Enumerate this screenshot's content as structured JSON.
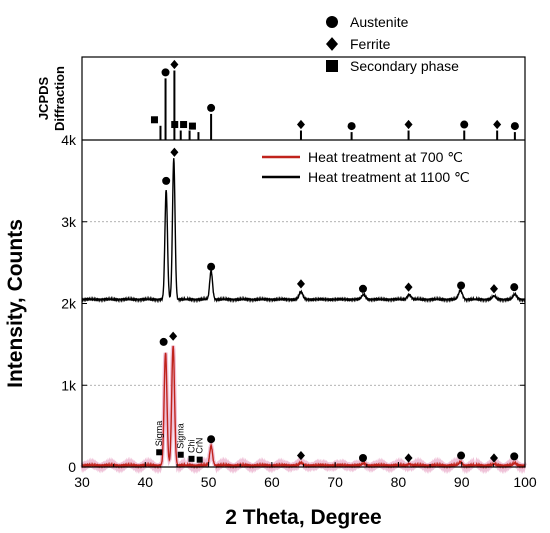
{
  "chart_data": {
    "type": "line",
    "xlabel": "2 Theta, Degree",
    "ylabel": "Intensity, Counts",
    "xlim": [
      30,
      100
    ],
    "ylim": [
      0,
      4000
    ],
    "x_ticks": [
      "30",
      "40",
      "50",
      "60",
      "70",
      "80",
      "90",
      "100"
    ],
    "y_ticks": [
      "0",
      "1k",
      "2k",
      "3k",
      "4k"
    ],
    "grid": "dotted horizontal at 1k and 3k",
    "upper_panel": {
      "label_line1": "JCPDS",
      "label_line2": "Diffraction",
      "legend": [
        {
          "name": "Austenite",
          "marker": "circle"
        },
        {
          "name": "Ferrite",
          "marker": "diamond"
        },
        {
          "name": "Secondary phase",
          "marker": "square"
        }
      ],
      "reference_lines": [
        {
          "x": 42.4,
          "height": 0.18,
          "phase": "Secondary phase"
        },
        {
          "x": 43.2,
          "height": 0.78,
          "phase": "Austenite"
        },
        {
          "x": 44.6,
          "height": 0.88,
          "phase": "Ferrite"
        },
        {
          "x": 45.6,
          "height": 0.12,
          "phase": "Secondary phase"
        },
        {
          "x": 47.0,
          "height": 0.12,
          "phase": "Secondary phase"
        },
        {
          "x": 48.4,
          "height": 0.1,
          "phase": "Secondary phase"
        },
        {
          "x": 50.4,
          "height": 0.33,
          "phase": "Austenite"
        },
        {
          "x": 64.6,
          "height": 0.12,
          "phase": "Ferrite"
        },
        {
          "x": 72.6,
          "height": 0.1,
          "phase": "Austenite"
        },
        {
          "x": 81.6,
          "height": 0.12,
          "phase": "Ferrite"
        },
        {
          "x": 90.4,
          "height": 0.12,
          "phase": "Austenite"
        },
        {
          "x": 95.6,
          "height": 0.12,
          "phase": "Ferrite"
        },
        {
          "x": 98.4,
          "height": 0.1,
          "phase": "Austenite"
        }
      ]
    },
    "series": [
      {
        "name": "Heat treatment at 700 ℃",
        "color": "#c0231c",
        "baseline": 20,
        "peaks": [
          {
            "x": 43.2,
            "y": 1380,
            "w": 0.22
          },
          {
            "x": 44.4,
            "y": 1460,
            "w": 0.22
          },
          {
            "x": 50.4,
            "y": 240,
            "w": 0.22
          },
          {
            "x": 64.6,
            "y": 30,
            "w": 0.25
          },
          {
            "x": 74.5,
            "y": 25,
            "w": 0.25
          },
          {
            "x": 81.7,
            "y": 20,
            "w": 0.25
          },
          {
            "x": 89.8,
            "y": 40,
            "w": 0.25
          },
          {
            "x": 95.1,
            "y": 15,
            "w": 0.25
          },
          {
            "x": 98.4,
            "y": 25,
            "w": 0.25
          }
        ]
      },
      {
        "name": "Heat treatment at 1100 ℃",
        "color": "#000000",
        "baseline": 2050,
        "peaks": [
          {
            "x": 43.3,
            "y": 1340,
            "w": 0.2
          },
          {
            "x": 44.5,
            "y": 1720,
            "w": 0.2
          },
          {
            "x": 50.4,
            "y": 350,
            "w": 0.22
          },
          {
            "x": 64.6,
            "y": 90,
            "w": 0.3
          },
          {
            "x": 74.5,
            "y": 60,
            "w": 0.3
          },
          {
            "x": 81.7,
            "y": 60,
            "w": 0.3
          },
          {
            "x": 89.8,
            "y": 110,
            "w": 0.3
          },
          {
            "x": 95.1,
            "y": 40,
            "w": 0.3
          },
          {
            "x": 98.4,
            "y": 60,
            "w": 0.3
          }
        ]
      }
    ],
    "peak_markers": [
      {
        "series": "Heat treatment at 1100 ℃",
        "x": 43.3,
        "y": 3500,
        "marker": "circle"
      },
      {
        "series": "Heat treatment at 1100 ℃",
        "x": 44.6,
        "y": 3850,
        "marker": "diamond"
      },
      {
        "series": "Heat treatment at 1100 ℃",
        "x": 50.4,
        "y": 2450,
        "marker": "circle"
      },
      {
        "series": "Heat treatment at 1100 ℃",
        "x": 64.6,
        "y": 2240,
        "marker": "diamond"
      },
      {
        "series": "Heat treatment at 1100 ℃",
        "x": 74.4,
        "y": 2180,
        "marker": "circle"
      },
      {
        "series": "Heat treatment at 1100 ℃",
        "x": 81.6,
        "y": 2200,
        "marker": "diamond"
      },
      {
        "series": "Heat treatment at 1100 ℃",
        "x": 89.9,
        "y": 2220,
        "marker": "circle"
      },
      {
        "series": "Heat treatment at 1100 ℃",
        "x": 95.1,
        "y": 2180,
        "marker": "diamond"
      },
      {
        "series": "Heat treatment at 1100 ℃",
        "x": 98.3,
        "y": 2200,
        "marker": "circle"
      },
      {
        "series": "Heat treatment at 700 ℃",
        "x": 42.9,
        "y": 1530,
        "marker": "circle"
      },
      {
        "series": "Heat treatment at 700 ℃",
        "x": 44.4,
        "y": 1600,
        "marker": "diamond"
      },
      {
        "series": "Heat treatment at 700 ℃",
        "x": 50.4,
        "y": 340,
        "marker": "circle"
      },
      {
        "series": "Heat treatment at 700 ℃",
        "x": 64.6,
        "y": 140,
        "marker": "diamond"
      },
      {
        "series": "Heat treatment at 700 ℃",
        "x": 74.4,
        "y": 110,
        "marker": "circle"
      },
      {
        "series": "Heat treatment at 700 ℃",
        "x": 81.6,
        "y": 110,
        "marker": "diamond"
      },
      {
        "series": "Heat treatment at 700 ℃",
        "x": 89.9,
        "y": 140,
        "marker": "circle"
      },
      {
        "series": "Heat treatment at 700 ℃",
        "x": 95.1,
        "y": 110,
        "marker": "diamond"
      },
      {
        "series": "Heat treatment at 700 ℃",
        "x": 98.3,
        "y": 130,
        "marker": "circle"
      }
    ],
    "secondary_phase_labels": [
      {
        "text": "Sigma",
        "x": 42.2,
        "y": 180
      },
      {
        "text": "Sigma",
        "x": 45.6,
        "y": 150
      },
      {
        "text": "Chi",
        "x": 47.3,
        "y": 100
      },
      {
        "text": "CrN",
        "x": 48.6,
        "y": 90
      }
    ]
  }
}
